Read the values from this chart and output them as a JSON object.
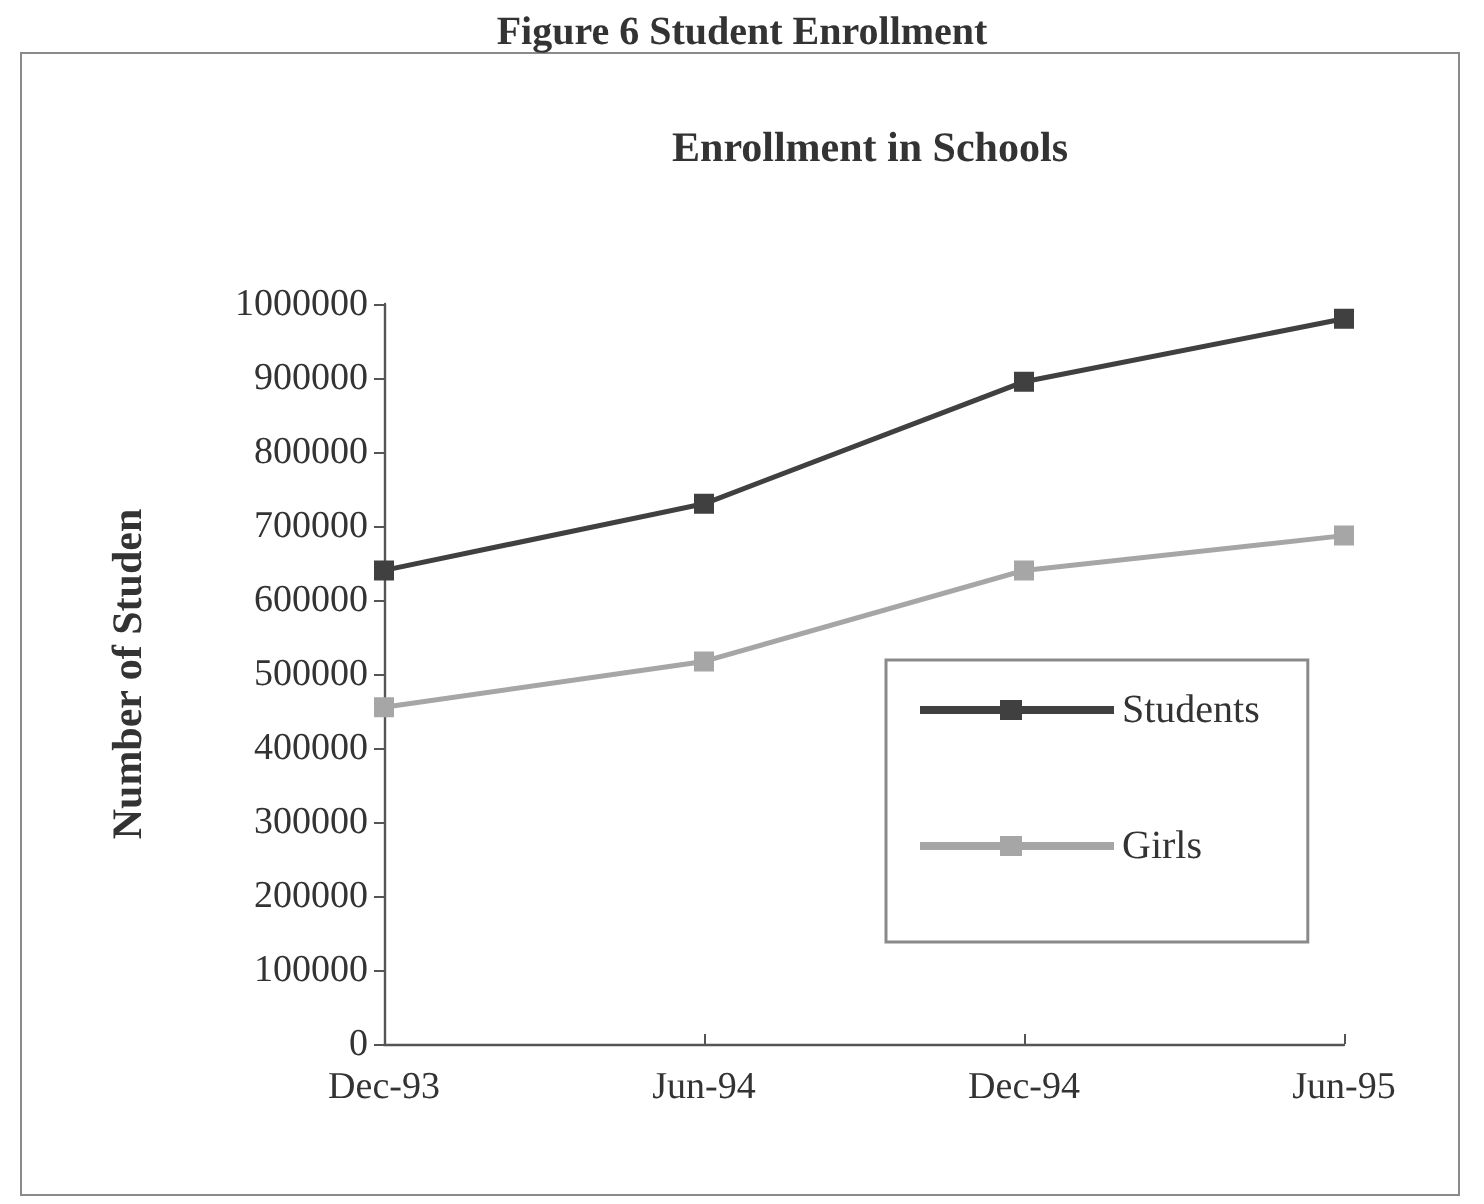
{
  "chart_data": {
    "type": "line",
    "title": "Enrollment in Schools",
    "ylabel": "Number of Studen",
    "annotations": [
      "Figure 6 Student Enrollment"
    ],
    "categories": [
      "Dec-93",
      "Jun-94",
      "Dec-94",
      "Jun-95"
    ],
    "series": [
      {
        "name": "Students",
        "color": "#404040",
        "values": [
          640000,
          730000,
          895000,
          980000
        ]
      },
      {
        "name": "Girls",
        "color": "#a6a6a6",
        "values": [
          455000,
          517000,
          640000,
          687000
        ]
      }
    ],
    "ylim": [
      0,
      1000000
    ],
    "yticks": [
      0,
      100000,
      200000,
      300000,
      400000,
      500000,
      600000,
      700000,
      800000,
      900000,
      1000000
    ],
    "grid": false,
    "legend": "right",
    "marker": "square",
    "line_style": "solid"
  }
}
